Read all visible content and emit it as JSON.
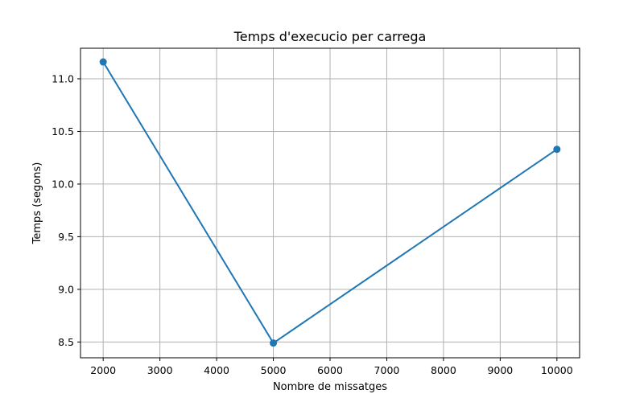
{
  "chart_data": {
    "type": "line",
    "title": "Temps d'execucio per carrega",
    "xlabel": "Nombre de missatges",
    "ylabel": "Temps (segons)",
    "x": [
      2000,
      5000,
      10000
    ],
    "series": [
      {
        "values": [
          11.16,
          8.49,
          10.33
        ],
        "color": "#1f77b4",
        "marker": "circle"
      }
    ],
    "xlim": [
      1600,
      10400
    ],
    "ylim": [
      8.35,
      11.29
    ],
    "xticks": [
      2000,
      3000,
      4000,
      5000,
      6000,
      7000,
      8000,
      9000,
      10000
    ],
    "yticks": [
      8.5,
      9.0,
      9.5,
      10.0,
      10.5,
      11.0
    ],
    "xtick_labels": [
      "2000",
      "3000",
      "4000",
      "5000",
      "6000",
      "7000",
      "8000",
      "9000",
      "10000"
    ],
    "ytick_labels": [
      "8.5",
      "9.0",
      "9.5",
      "10.0",
      "10.5",
      "11.0"
    ],
    "grid": true
  }
}
